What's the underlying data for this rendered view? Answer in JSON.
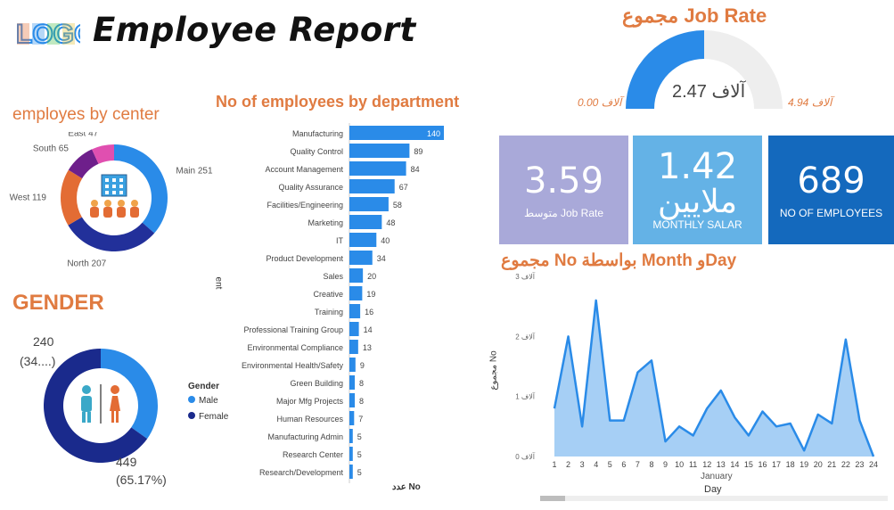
{
  "header": {
    "logo_text": "LOGO",
    "title": "Employee Report"
  },
  "center_chart": {
    "title": "employes by center"
  },
  "gender_chart": {
    "title": "GENDER",
    "legend_title": "Gender",
    "male_label_value": "240",
    "male_label_pct": "(34....)",
    "female_label_value": "449",
    "female_label_pct": "(65.17%)"
  },
  "dept_chart": {
    "title": "No of employees by department",
    "y_axis_fragment": "ent",
    "x_axis_label": "عدد No"
  },
  "job_rate": {
    "title": "مجموع Job Rate",
    "value": "آلاف 2.47",
    "min_label": "آلاف 0.00",
    "max_label": "آلاف 4.94"
  },
  "cards": [
    {
      "value": "3.59",
      "label": "متوسط Job Rate",
      "color": "#a9a9d9"
    },
    {
      "value": "1.42",
      "value_line2": "ملايين",
      "label": "MONTHLY SALAR",
      "color": "#64b2e6"
    },
    {
      "value": "689",
      "label": "NO OF EMPLOYEES",
      "color": "#1469bd"
    }
  ],
  "line_chart": {
    "title": "مجموع No بواسطة Month وDay",
    "y_axis_label": "مجموع No",
    "x_axis_label": "Day",
    "x_sublabel": "January"
  },
  "chart_data": [
    {
      "type": "pie",
      "variant": "donut",
      "title": "employes by center",
      "slices": [
        {
          "label": "Main",
          "value": 251,
          "color": "#2a8be8"
        },
        {
          "label": "North",
          "value": 207,
          "color": "#22309a"
        },
        {
          "label": "West",
          "value": 119,
          "color": "#e36c34"
        },
        {
          "label": "South",
          "value": 65,
          "color": "#6e1f8b"
        },
        {
          "label": "East",
          "value": 47,
          "color": "#e04fb0"
        }
      ]
    },
    {
      "type": "pie",
      "variant": "donut",
      "title": "GENDER",
      "slices": [
        {
          "label": "Male",
          "value": 240,
          "color": "#2a8be8"
        },
        {
          "label": "Female",
          "value": 449,
          "color": "#1a2a8c"
        }
      ]
    },
    {
      "type": "bar",
      "orientation": "horizontal",
      "title": "No of employees by department",
      "categories": [
        "Manufacturing",
        "Quality Control",
        "Account Management",
        "Quality Assurance",
        "Facilities/Engineering",
        "Marketing",
        "IT",
        "Product Development",
        "Sales",
        "Creative",
        "Training",
        "Professional Training Group",
        "Environmental Compliance",
        "Environmental Health/Safety",
        "Green Building",
        "Major Mfg Projects",
        "Human Resources",
        "Manufacturing Admin",
        "Research Center",
        "Research/Development"
      ],
      "values": [
        140,
        89,
        84,
        67,
        58,
        48,
        40,
        34,
        20,
        19,
        16,
        14,
        13,
        9,
        8,
        8,
        7,
        5,
        5,
        5
      ],
      "xlim": [
        0,
        140
      ],
      "color": "#2a8be8"
    },
    {
      "type": "area",
      "title": "مجموع No بواسطة Month وDay",
      "x": [
        1,
        2,
        3,
        4,
        5,
        6,
        7,
        8,
        9,
        10,
        11,
        12,
        13,
        14,
        15,
        16,
        17,
        18,
        19,
        20,
        21,
        22,
        23,
        24
      ],
      "y": [
        0.8,
        2,
        0.5,
        2.6,
        0.6,
        0.6,
        1.4,
        1.6,
        0.25,
        0.5,
        0.35,
        0.8,
        1.1,
        0.65,
        0.35,
        0.75,
        0.5,
        0.55,
        0.1,
        0.7,
        0.55,
        1.95,
        0.6,
        0
      ],
      "y_ticks": [
        "آلاف 0",
        "آلاف 1",
        "آلاف 2",
        "آلاف 3"
      ],
      "ylim": [
        0,
        3
      ],
      "color": "#2a8be8",
      "fill": "#a6cff5"
    },
    {
      "type": "gauge",
      "title": "مجموع Job Rate",
      "value": 2.47,
      "min": 0,
      "max": 4.94,
      "unit": "آلاف"
    }
  ]
}
